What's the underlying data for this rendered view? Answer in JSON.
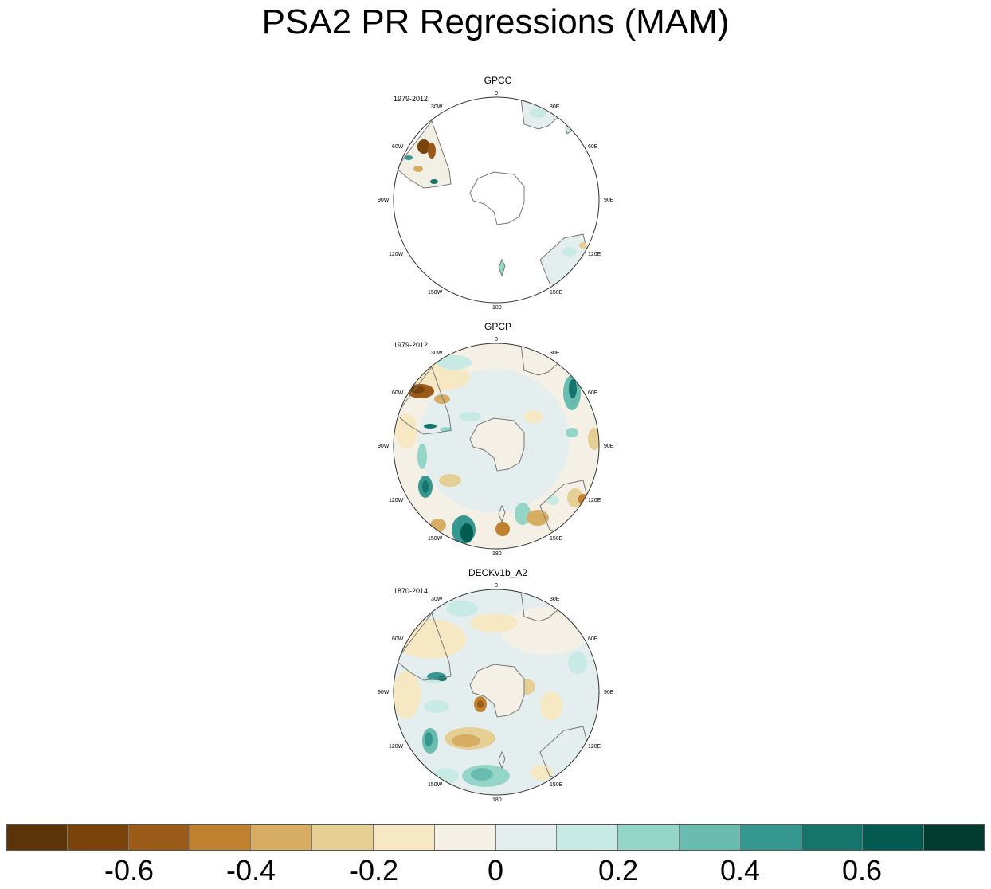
{
  "title": "PSA2 PR Regressions (MAM)",
  "panels": [
    {
      "name": "GPCC",
      "period": "1979-2012"
    },
    {
      "name": "GPCP",
      "period": "1979-2012"
    },
    {
      "name": "DECKv1b_A2",
      "period": "1870-2014"
    }
  ],
  "lon_labels": {
    "l0": "0",
    "l30e": "30E",
    "l60e": "60E",
    "l90e": "90E",
    "l120e": "120E",
    "l150e": "150E",
    "l180": "180",
    "l150w": "150W",
    "l120w": "120W",
    "l90w": "90W",
    "l60w": "60W",
    "l30w": "30W"
  },
  "colorbar": {
    "colors": [
      "#5b3508",
      "#7a430b",
      "#9a5a18",
      "#bf812d",
      "#d6ad62",
      "#e6cf95",
      "#f6e8c3",
      "#f4f0e6",
      "#e4eeee",
      "#c7eae5",
      "#95d5c8",
      "#6abcb0",
      "#35978f",
      "#15756c",
      "#035a50",
      "#003c30"
    ],
    "tick_labels": [
      "-0.6",
      "-0.4",
      "-0.2",
      "0",
      "0.2",
      "0.4",
      "0.6"
    ]
  }
}
